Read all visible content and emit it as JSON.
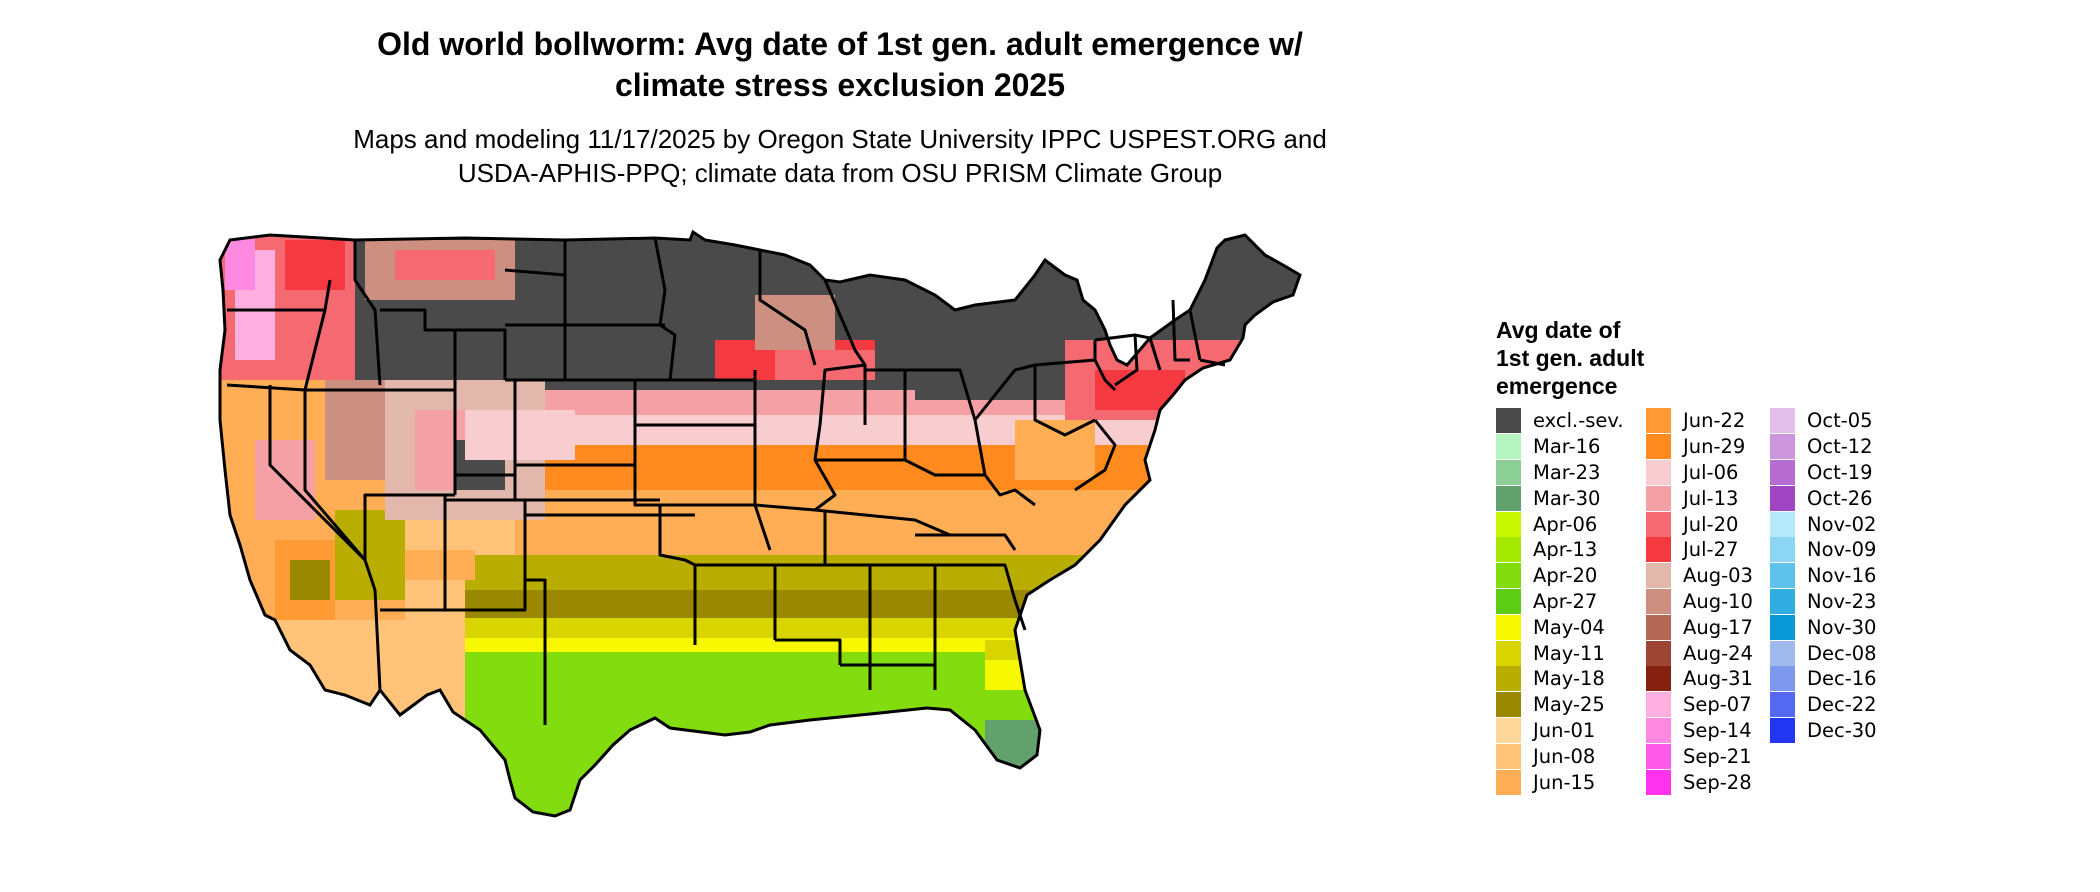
{
  "title_line1": "Old world bollworm: Avg date of 1st gen. adult emergence w/",
  "title_line2": "climate stress exclusion 2025",
  "subtitle_line1": "Maps and modeling 11/17/2025 by Oregon State University IPPC USPEST.ORG and",
  "subtitle_line2": "USDA-APHIS-PPQ; climate data from OSU PRISM Climate Group",
  "legend": {
    "title_lines": [
      "Avg date of",
      "1st gen. adult",
      "emergence"
    ],
    "columns": [
      [
        {
          "label": "excl.-sev.",
          "color": "#4a4a4a"
        },
        {
          "label": "Mar-16",
          "color": "#b6f5c0"
        },
        {
          "label": "Mar-23",
          "color": "#8ccf96"
        },
        {
          "label": "Mar-30",
          "color": "#62a06c"
        },
        {
          "label": "Apr-06",
          "color": "#c8f700"
        },
        {
          "label": "Apr-13",
          "color": "#a4ea00"
        },
        {
          "label": "Apr-20",
          "color": "#82dc0e"
        },
        {
          "label": "Apr-27",
          "color": "#5ccc14"
        },
        {
          "label": "May-04",
          "color": "#f7f700"
        },
        {
          "label": "May-11",
          "color": "#d8d400"
        },
        {
          "label": "May-18",
          "color": "#b8ad00"
        },
        {
          "label": "May-25",
          "color": "#998800"
        },
        {
          "label": "Jun-01",
          "color": "#ffd79a"
        },
        {
          "label": "Jun-08",
          "color": "#ffc47a"
        },
        {
          "label": "Jun-15",
          "color": "#ffae55"
        }
      ],
      [
        {
          "label": "Jun-22",
          "color": "#ff9a35"
        },
        {
          "label": "Jun-29",
          "color": "#ff8a1e"
        },
        {
          "label": "Jul-06",
          "color": "#f7cdd0"
        },
        {
          "label": "Jul-13",
          "color": "#f4a0a4"
        },
        {
          "label": "Jul-20",
          "color": "#f46a70"
        },
        {
          "label": "Jul-27",
          "color": "#f43a40"
        },
        {
          "label": "Aug-03",
          "color": "#e2b7ac"
        },
        {
          "label": "Aug-10",
          "color": "#cc8f80"
        },
        {
          "label": "Aug-17",
          "color": "#b56856"
        },
        {
          "label": "Aug-24",
          "color": "#9e4636"
        },
        {
          "label": "Aug-31",
          "color": "#86200f"
        },
        {
          "label": "Sep-07",
          "color": "#ffaee0"
        },
        {
          "label": "Sep-14",
          "color": "#ff88e0"
        },
        {
          "label": "Sep-21",
          "color": "#ff5ae8"
        },
        {
          "label": "Sep-28",
          "color": "#ff32f0"
        }
      ],
      [
        {
          "label": "Oct-05",
          "color": "#e3c0ea"
        },
        {
          "label": "Oct-12",
          "color": "#cc96dd"
        },
        {
          "label": "Oct-19",
          "color": "#b66cd0"
        },
        {
          "label": "Oct-26",
          "color": "#a046c2"
        },
        {
          "label": "Nov-02",
          "color": "#b4e8fa"
        },
        {
          "label": "Nov-09",
          "color": "#8cd6f4"
        },
        {
          "label": "Nov-16",
          "color": "#5ec2ec"
        },
        {
          "label": "Nov-23",
          "color": "#32ade2"
        },
        {
          "label": "Nov-30",
          "color": "#0998d6"
        },
        {
          "label": "Dec-08",
          "color": "#a0baec"
        },
        {
          "label": "Dec-16",
          "color": "#7e98ee"
        },
        {
          "label": "Dec-22",
          "color": "#5468f0"
        },
        {
          "label": "Dec-30",
          "color": "#2236f2"
        }
      ]
    ]
  }
}
